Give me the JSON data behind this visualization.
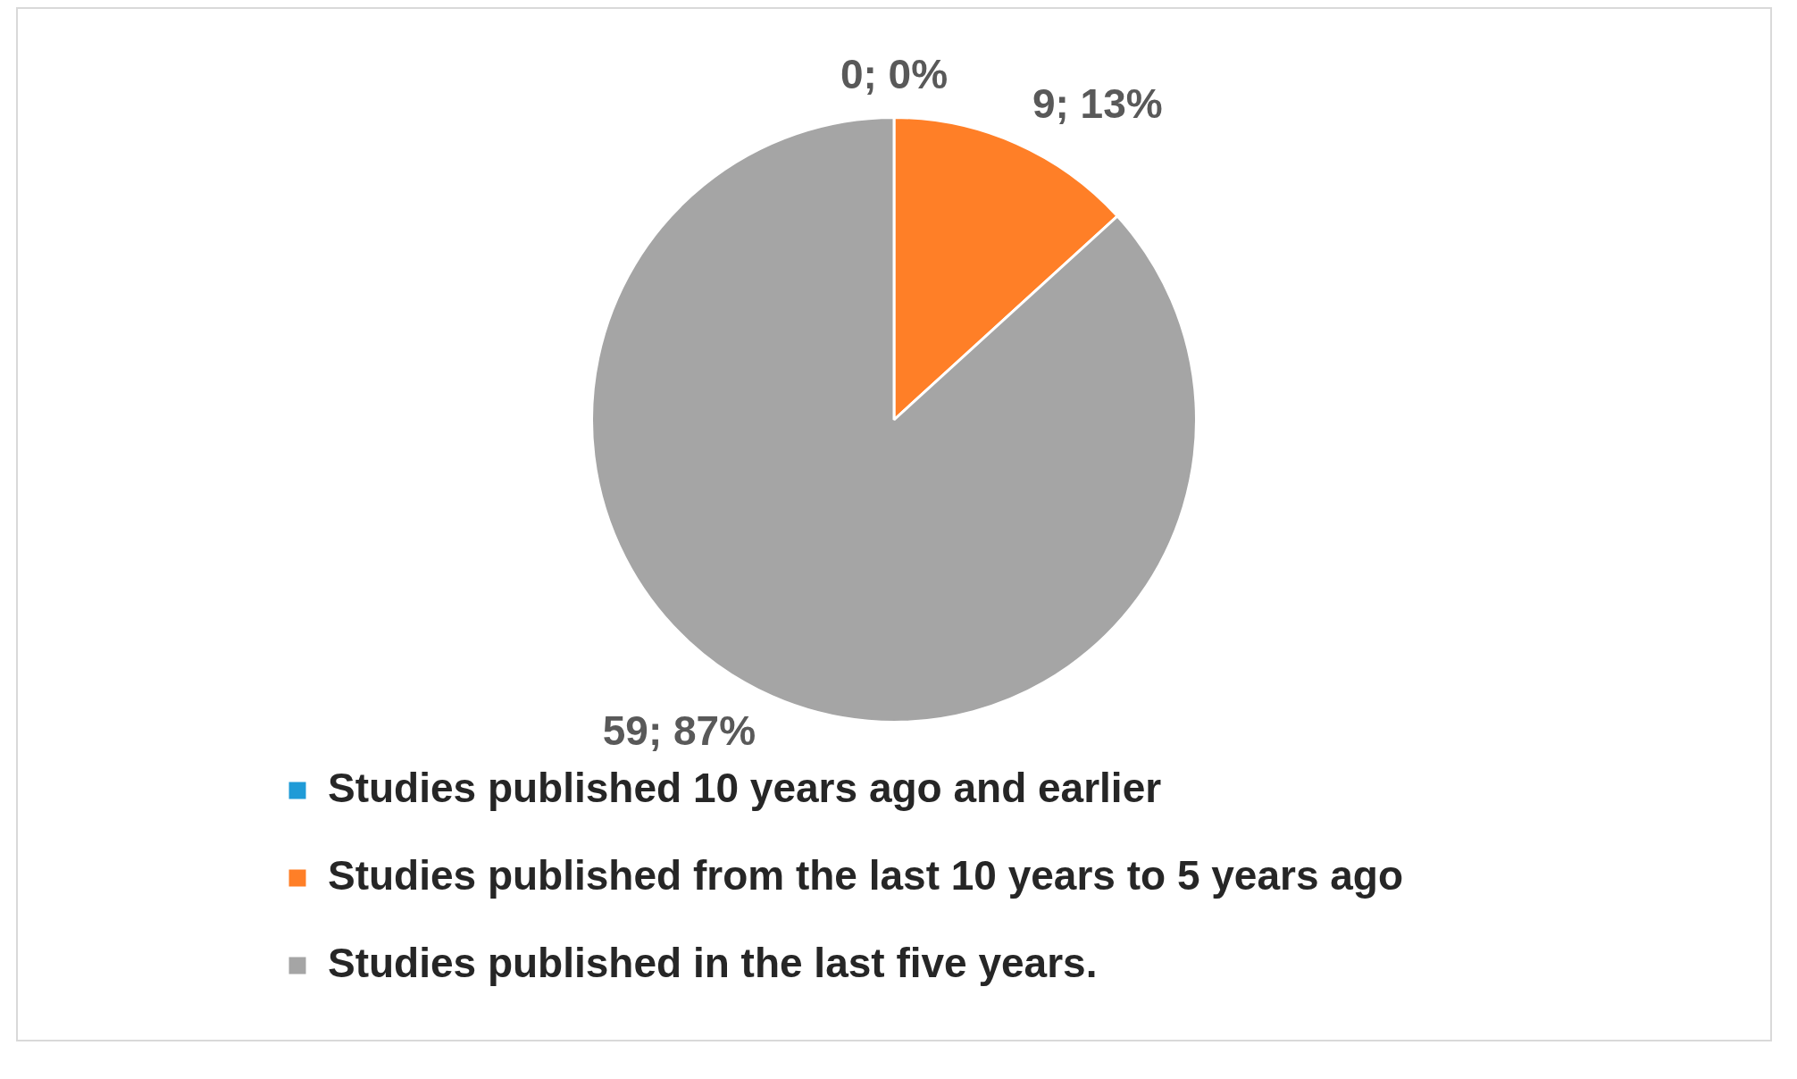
{
  "chart_data": {
    "type": "pie",
    "categories": [
      "Studies published 10 years ago and earlier",
      "Studies published from the last 10 years to 5 years ago",
      "Studies published in the last five years."
    ],
    "values": [
      0,
      9,
      59
    ],
    "colors": [
      "#1f9bd7",
      "#ff7f27",
      "#a5a5a5"
    ],
    "value_labels": [
      "0; 0%",
      "9; 13%",
      "59; 87%"
    ],
    "legend": "bottom"
  }
}
